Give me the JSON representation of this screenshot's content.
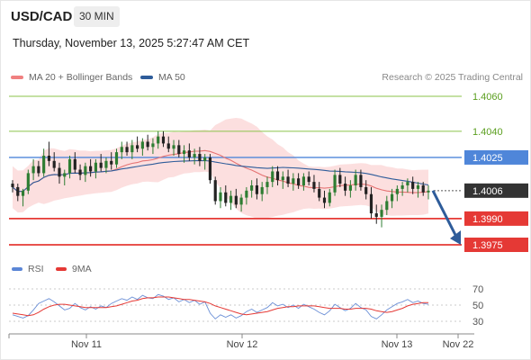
{
  "header": {
    "symbol": "USD/CAD",
    "interval": "30 MIN",
    "datetime": "Thursday, November 13, 2025 5:27:47 AM CET"
  },
  "legend": {
    "ma_bb_label": "MA 20 + Bollinger Bands",
    "ma50_label": "MA 50",
    "credit": "Research © 2025 Trading Central"
  },
  "rsi_legend": {
    "rsi_label": "RSI",
    "ma_label": "9MA"
  },
  "colors": {
    "ma20": "#e57373",
    "ma50": "#2e5c9a",
    "bands_fill": "#fbd9d9",
    "up_candle": "#2e7d32",
    "down_candle": "#222222",
    "resistance_green": "#8bc34a",
    "blue_level": "#4f86d9",
    "support_red": "#e53935",
    "rsi_line": "#6b8fd6",
    "rsi_ma": "#e53935",
    "arrow": "#2e5c9a"
  },
  "chart_data": {
    "type": "candlestick",
    "price_range": [
      1.3964,
      1.4072
    ],
    "levels": [
      {
        "label": "1.4060",
        "value": 1.406,
        "kind": "resistance"
      },
      {
        "label": "1.4040",
        "value": 1.404,
        "kind": "resistance"
      },
      {
        "label": "1.4025",
        "value": 1.4025,
        "kind": "pivot"
      },
      {
        "label": "1.4006",
        "value": 1.4006,
        "kind": "last"
      },
      {
        "label": "1.3990",
        "value": 1.399,
        "kind": "support"
      },
      {
        "label": "1.3975",
        "value": 1.3975,
        "kind": "target"
      }
    ],
    "x_ticks": [
      "Nov 11",
      "Nov 12",
      "Nov 13",
      "Nov 22"
    ],
    "forecast_arrow": {
      "from": 1.4006,
      "to": 1.3975
    },
    "candles": [
      [
        1.401,
        1.4012,
        1.4005,
        1.4008
      ],
      [
        1.4008,
        1.401,
        1.4,
        1.4003
      ],
      [
        1.4003,
        1.4007,
        1.3997,
        1.4006
      ],
      [
        1.4006,
        1.4018,
        1.4004,
        1.4016
      ],
      [
        1.4016,
        1.4024,
        1.4012,
        1.402
      ],
      [
        1.402,
        1.4023,
        1.4014,
        1.4016
      ],
      [
        1.4016,
        1.403,
        1.4014,
        1.4026
      ],
      [
        1.4026,
        1.4034,
        1.402,
        1.4023
      ],
      [
        1.4023,
        1.4028,
        1.4017,
        1.4019
      ],
      [
        1.4019,
        1.4022,
        1.401,
        1.4014
      ],
      [
        1.4014,
        1.4018,
        1.4009,
        1.4016
      ],
      [
        1.4016,
        1.4026,
        1.4013,
        1.4024
      ],
      [
        1.4024,
        1.4028,
        1.4016,
        1.4018
      ],
      [
        1.4018,
        1.4021,
        1.4012,
        1.4015
      ],
      [
        1.4015,
        1.4022,
        1.4011,
        1.402
      ],
      [
        1.402,
        1.4024,
        1.4014,
        1.4017
      ],
      [
        1.4017,
        1.4024,
        1.4013,
        1.4022
      ],
      [
        1.4022,
        1.4027,
        1.4017,
        1.4019
      ],
      [
        1.4019,
        1.4025,
        1.4016,
        1.4023
      ],
      [
        1.4023,
        1.4028,
        1.4018,
        1.4021
      ],
      [
        1.4021,
        1.403,
        1.4019,
        1.4028
      ],
      [
        1.4028,
        1.4034,
        1.4024,
        1.4031
      ],
      [
        1.4031,
        1.4034,
        1.4026,
        1.4028
      ],
      [
        1.4028,
        1.4035,
        1.4024,
        1.4032
      ],
      [
        1.4032,
        1.4037,
        1.4028,
        1.403
      ],
      [
        1.403,
        1.4036,
        1.4026,
        1.4034
      ],
      [
        1.4034,
        1.4038,
        1.4029,
        1.4031
      ],
      [
        1.4031,
        1.4036,
        1.4027,
        1.4033
      ],
      [
        1.4033,
        1.404,
        1.403,
        1.4037
      ],
      [
        1.4037,
        1.404,
        1.4031,
        1.4033
      ],
      [
        1.4033,
        1.4037,
        1.4028,
        1.403
      ],
      [
        1.403,
        1.4035,
        1.4026,
        1.4032
      ],
      [
        1.4032,
        1.4035,
        1.4025,
        1.4027
      ],
      [
        1.4027,
        1.4032,
        1.4022,
        1.4029
      ],
      [
        1.4029,
        1.4033,
        1.4023,
        1.4025
      ],
      [
        1.4025,
        1.403,
        1.4021,
        1.4027
      ],
      [
        1.4027,
        1.4031,
        1.402,
        1.4023
      ],
      [
        1.4023,
        1.4027,
        1.4018,
        1.4025
      ],
      [
        1.4025,
        1.4027,
        1.401,
        1.4012
      ],
      [
        1.4012,
        1.4014,
        1.3998,
        1.4
      ],
      [
        1.4,
        1.4008,
        1.3996,
        1.4005
      ],
      [
        1.4005,
        1.4009,
        1.3997,
        1.3999
      ],
      [
        1.3999,
        1.4006,
        1.3995,
        1.4003
      ],
      [
        1.4003,
        1.4007,
        1.3996,
        1.3998
      ],
      [
        1.3998,
        1.4004,
        1.3994,
        1.4002
      ],
      [
        1.4002,
        1.4008,
        1.3998,
        1.4006
      ],
      [
        1.4006,
        1.4012,
        1.4002,
        1.4009
      ],
      [
        1.4009,
        1.4013,
        1.4001,
        1.4004
      ],
      [
        1.4004,
        1.4011,
        1.4,
        1.4008
      ],
      [
        1.4008,
        1.4014,
        1.4004,
        1.4011
      ],
      [
        1.4011,
        1.402,
        1.4008,
        1.4017
      ],
      [
        1.4017,
        1.402,
        1.4009,
        1.4012
      ],
      [
        1.4012,
        1.4017,
        1.4007,
        1.4014
      ],
      [
        1.4014,
        1.4018,
        1.4008,
        1.401
      ],
      [
        1.401,
        1.4016,
        1.4006,
        1.4013
      ],
      [
        1.4013,
        1.4016,
        1.4007,
        1.4009
      ],
      [
        1.4009,
        1.4016,
        1.4006,
        1.4014
      ],
      [
        1.4014,
        1.4017,
        1.4009,
        1.4011
      ],
      [
        1.4011,
        1.4015,
        1.4005,
        1.4007
      ],
      [
        1.4007,
        1.4011,
        1.4,
        1.4002
      ],
      [
        1.4002,
        1.4006,
        1.3996,
        1.3999
      ],
      [
        1.3999,
        1.4007,
        1.3997,
        1.4005
      ],
      [
        1.4005,
        1.4018,
        1.4003,
        1.4015
      ],
      [
        1.4015,
        1.4019,
        1.4008,
        1.401
      ],
      [
        1.401,
        1.4014,
        1.4003,
        1.4006
      ],
      [
        1.4006,
        1.4012,
        1.4002,
        1.4009
      ],
      [
        1.4009,
        1.4018,
        1.4006,
        1.4015
      ],
      [
        1.4015,
        1.4018,
        1.4006,
        1.4008
      ],
      [
        1.4008,
        1.4012,
        1.4001,
        1.4004
      ],
      [
        1.4004,
        1.4008,
        1.399,
        1.3993
      ],
      [
        1.3993,
        1.3998,
        1.3987,
        1.3991
      ],
      [
        1.3991,
        1.3998,
        1.3985,
        1.3995
      ],
      [
        1.3995,
        1.4003,
        1.3992,
        1.4
      ],
      [
        1.4,
        1.4007,
        1.3996,
        1.4004
      ],
      [
        1.4004,
        1.4009,
        1.4,
        1.4007
      ],
      [
        1.4007,
        1.4011,
        1.4003,
        1.4009
      ],
      [
        1.4009,
        1.4013,
        1.4005,
        1.4011
      ],
      [
        1.4011,
        1.4014,
        1.4004,
        1.4007
      ],
      [
        1.4007,
        1.4011,
        1.4002,
        1.4009
      ],
      [
        1.4009,
        1.4011,
        1.4003,
        1.4005
      ],
      [
        1.4005,
        1.4009,
        1.4001,
        1.4006
      ]
    ],
    "rsi": {
      "axis_labels": [
        "70",
        "50",
        "30"
      ],
      "levels": [
        70,
        50,
        30
      ],
      "range": [
        20,
        80
      ],
      "rsi_values": [
        38,
        36,
        34,
        37,
        44,
        52,
        55,
        58,
        54,
        49,
        44,
        46,
        52,
        47,
        44,
        48,
        45,
        49,
        47,
        52,
        55,
        58,
        56,
        60,
        57,
        62,
        59,
        58,
        63,
        61,
        57,
        59,
        54,
        57,
        53,
        56,
        51,
        54,
        40,
        33,
        38,
        35,
        38,
        34,
        37,
        42,
        45,
        41,
        44,
        47,
        53,
        49,
        51,
        47,
        50,
        46,
        51,
        48,
        45,
        41,
        38,
        43,
        51,
        47,
        43,
        46,
        52,
        47,
        44,
        36,
        33,
        38,
        44,
        48,
        52,
        54,
        57,
        53,
        55,
        52,
        51
      ],
      "ma_values": [
        40,
        39,
        38,
        37,
        38,
        41,
        45,
        48,
        50,
        51,
        51,
        50,
        49,
        48,
        47,
        47,
        47,
        47,
        47,
        48,
        49,
        51,
        53,
        55,
        56,
        58,
        59,
        59,
        60,
        60,
        60,
        59,
        58,
        57,
        57,
        56,
        55,
        54,
        52,
        49,
        47,
        45,
        43,
        41,
        39,
        38,
        39,
        40,
        41,
        42,
        44,
        46,
        47,
        48,
        48,
        49,
        49,
        49,
        49,
        48,
        47,
        46,
        46,
        46,
        45,
        45,
        46,
        46,
        46,
        45,
        43,
        42,
        41,
        42,
        44,
        46,
        49,
        51,
        52,
        53,
        53
      ]
    }
  }
}
